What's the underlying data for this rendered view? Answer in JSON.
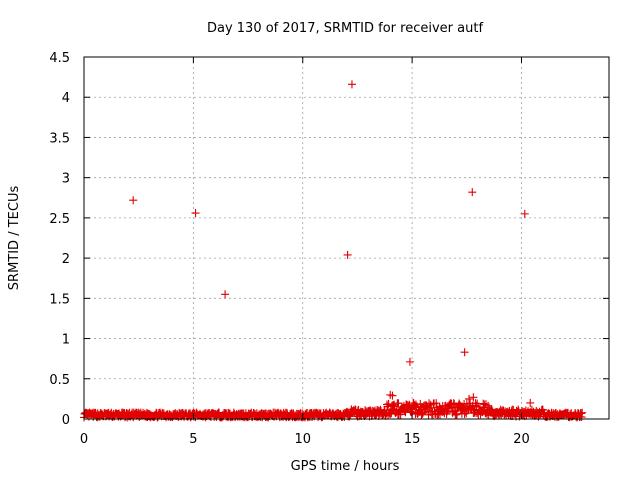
{
  "chart_data": {
    "type": "scatter",
    "title": "Day 130 of 2017, SRMTID for receiver autf",
    "xlabel": "GPS time / hours",
    "ylabel": "SRMTID / TECUs",
    "xlim": [
      0,
      24
    ],
    "ylim": [
      0,
      4.5
    ],
    "xticks": [
      0,
      5,
      10,
      15,
      20
    ],
    "xtick_labels": [
      "0",
      "5",
      "10",
      "15",
      "20"
    ],
    "yticks": [
      0,
      0.5,
      1,
      1.5,
      2,
      2.5,
      3,
      3.5,
      4,
      4.5
    ],
    "ytick_labels": [
      "0",
      "0.5",
      "1",
      "1.5",
      "2",
      "2.5",
      "3",
      "3.5",
      "4",
      "4.5"
    ],
    "grid": true,
    "marker": "+",
    "color": "#e00000",
    "outliers": [
      {
        "x": 2.25,
        "y": 2.72
      },
      {
        "x": 5.1,
        "y": 2.56
      },
      {
        "x": 6.45,
        "y": 1.55
      },
      {
        "x": 12.05,
        "y": 2.04
      },
      {
        "x": 12.25,
        "y": 4.16
      },
      {
        "x": 14.9,
        "y": 0.71
      },
      {
        "x": 17.4,
        "y": 0.83
      },
      {
        "x": 17.75,
        "y": 2.82
      },
      {
        "x": 20.15,
        "y": 2.55
      },
      {
        "x": 14.0,
        "y": 0.3
      },
      {
        "x": 14.1,
        "y": 0.29
      },
      {
        "x": 17.6,
        "y": 0.25
      },
      {
        "x": 17.8,
        "y": 0.27
      },
      {
        "x": 20.4,
        "y": 0.2
      }
    ],
    "baseline_segments": [
      {
        "x_start": 0.0,
        "x_end": 12.0,
        "y_min": 0.02,
        "y_max": 0.08
      },
      {
        "x_start": 12.0,
        "x_end": 13.8,
        "y_min": 0.03,
        "y_max": 0.12
      },
      {
        "x_start": 13.8,
        "x_end": 18.5,
        "y_min": 0.05,
        "y_max": 0.2
      },
      {
        "x_start": 18.5,
        "x_end": 21.0,
        "y_min": 0.03,
        "y_max": 0.12
      },
      {
        "x_start": 21.0,
        "x_end": 22.8,
        "y_min": 0.02,
        "y_max": 0.08
      }
    ],
    "baseline_step_hours": 0.05
  }
}
